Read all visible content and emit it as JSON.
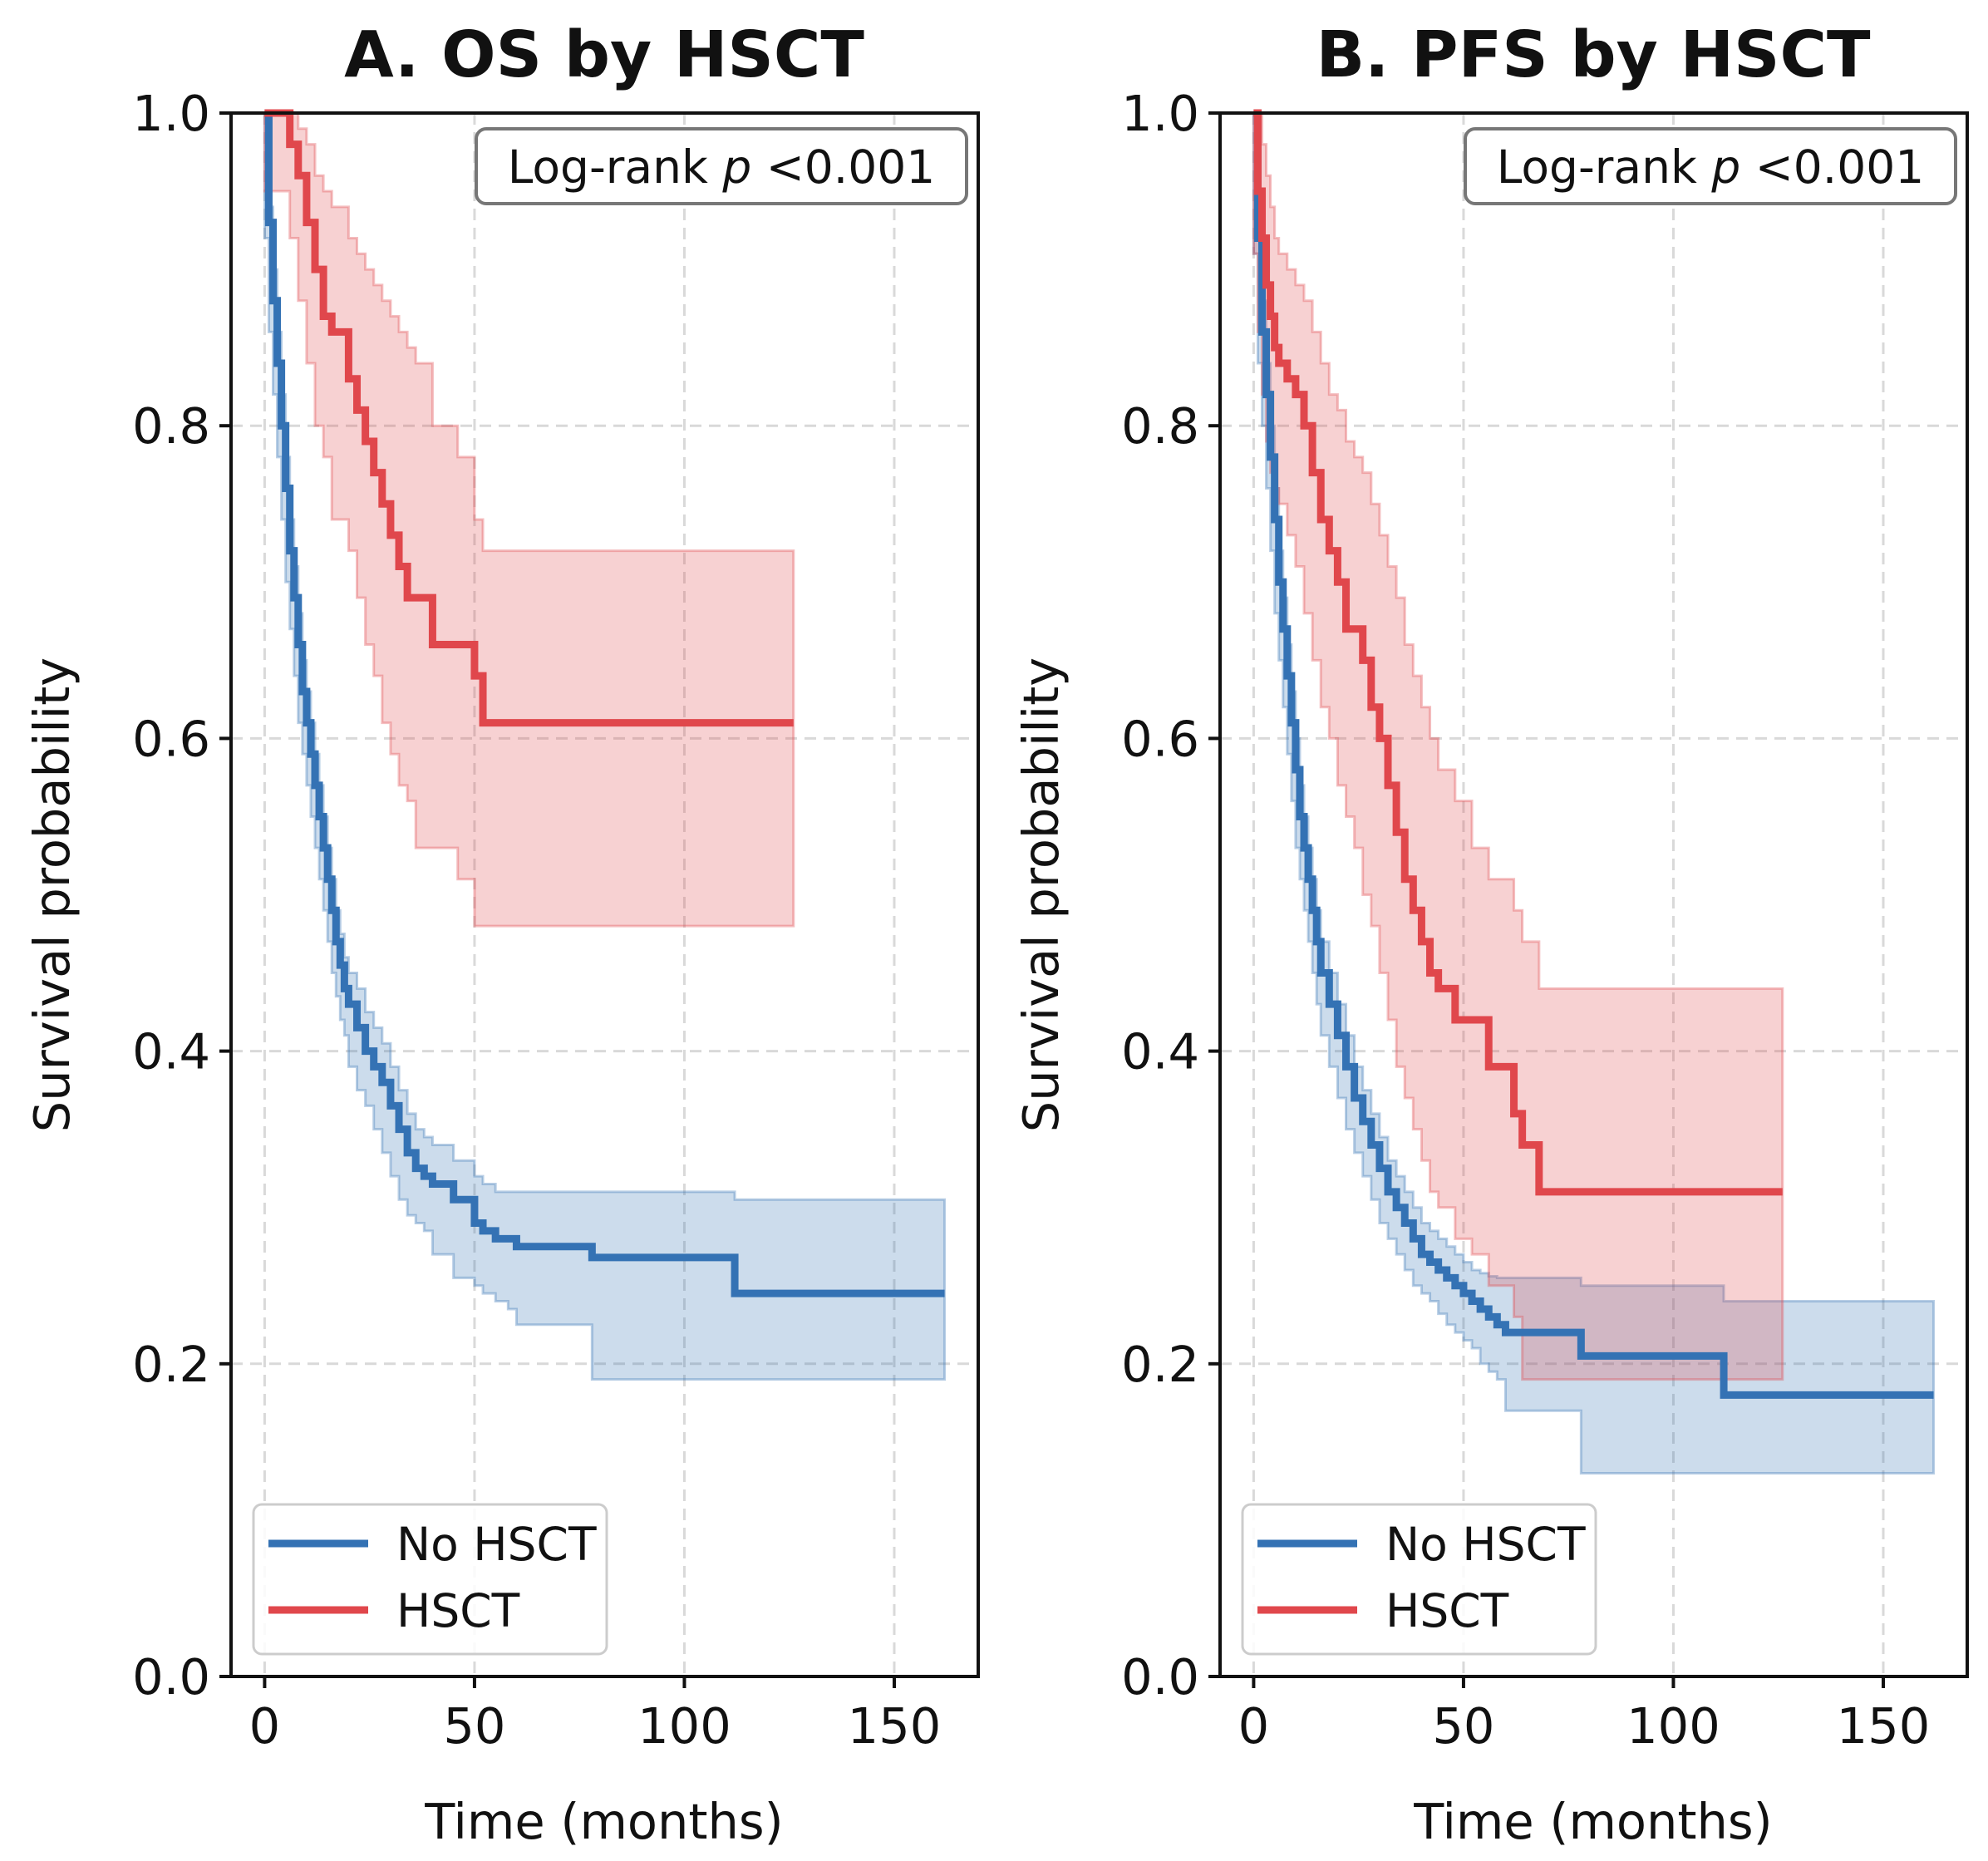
{
  "colors": {
    "no_hsct": "#3472b4",
    "hsct": "#e0474c",
    "no_hsct_band": "#c5d6e9",
    "hsct_band": "#f7c8ca"
  },
  "chart_data": [
    {
      "type": "line",
      "title": "A. OS by HSCT",
      "xlabel": "Time (months)",
      "ylabel": "Survival probability",
      "xlim": [
        -8,
        170
      ],
      "ylim": [
        0,
        1.0
      ],
      "xticks": [
        0,
        50,
        100,
        150
      ],
      "yticks": [
        0.0,
        0.2,
        0.4,
        0.6,
        0.8,
        1.0
      ],
      "annotation": {
        "prefix": "Log-rank ",
        "p": "p",
        "suffix": " <0.001"
      },
      "legend": {
        "position": "lower-left",
        "entries": [
          "No HSCT",
          "HSCT"
        ]
      },
      "series": [
        {
          "name": "No HSCT",
          "color_key": "no_hsct",
          "x": [
            0,
            1,
            2,
            3,
            4,
            5,
            6,
            7,
            8,
            9,
            10,
            11,
            12,
            13,
            14,
            15,
            16,
            17,
            18,
            19,
            20,
            22,
            24,
            26,
            28,
            30,
            32,
            34,
            36,
            38,
            40,
            45,
            50,
            52,
            55,
            58,
            60,
            78,
            112,
            162
          ],
          "y": [
            1.0,
            0.93,
            0.88,
            0.84,
            0.8,
            0.76,
            0.72,
            0.69,
            0.66,
            0.63,
            0.61,
            0.59,
            0.57,
            0.55,
            0.53,
            0.51,
            0.49,
            0.47,
            0.455,
            0.44,
            0.43,
            0.415,
            0.4,
            0.39,
            0.38,
            0.365,
            0.35,
            0.335,
            0.325,
            0.32,
            0.315,
            0.305,
            0.29,
            0.285,
            0.28,
            0.28,
            0.275,
            0.268,
            0.245,
            0.245
          ],
          "ci_upper": [
            1.0,
            0.94,
            0.9,
            0.86,
            0.82,
            0.78,
            0.74,
            0.71,
            0.68,
            0.65,
            0.63,
            0.61,
            0.59,
            0.57,
            0.55,
            0.53,
            0.51,
            0.49,
            0.475,
            0.46,
            0.45,
            0.44,
            0.425,
            0.415,
            0.405,
            0.39,
            0.375,
            0.36,
            0.35,
            0.345,
            0.34,
            0.33,
            0.32,
            0.315,
            0.31,
            0.31,
            0.31,
            0.31,
            0.305,
            0.305
          ],
          "ci_lower": [
            1.0,
            0.92,
            0.86,
            0.82,
            0.78,
            0.74,
            0.7,
            0.67,
            0.64,
            0.61,
            0.59,
            0.57,
            0.55,
            0.53,
            0.51,
            0.49,
            0.47,
            0.45,
            0.435,
            0.42,
            0.41,
            0.39,
            0.375,
            0.365,
            0.35,
            0.335,
            0.32,
            0.305,
            0.295,
            0.29,
            0.285,
            0.27,
            0.255,
            0.25,
            0.245,
            0.24,
            0.235,
            0.225,
            0.19,
            0.19
          ]
        },
        {
          "name": "HSCT",
          "color_key": "hsct",
          "x": [
            0,
            6,
            8,
            10,
            12,
            14,
            16,
            20,
            22,
            24,
            26,
            28,
            30,
            32,
            34,
            36,
            40,
            46,
            50,
            52,
            126
          ],
          "y": [
            1.0,
            0.98,
            0.96,
            0.93,
            0.9,
            0.87,
            0.86,
            0.83,
            0.81,
            0.79,
            0.77,
            0.75,
            0.73,
            0.71,
            0.69,
            0.69,
            0.66,
            0.66,
            0.64,
            0.61,
            0.61
          ],
          "ci_upper": [
            1.0,
            1.0,
            0.99,
            0.98,
            0.96,
            0.95,
            0.94,
            0.92,
            0.91,
            0.9,
            0.89,
            0.88,
            0.87,
            0.86,
            0.85,
            0.84,
            0.8,
            0.78,
            0.74,
            0.72,
            0.72
          ],
          "ci_lower": [
            1.0,
            0.95,
            0.92,
            0.88,
            0.84,
            0.8,
            0.78,
            0.74,
            0.72,
            0.69,
            0.66,
            0.64,
            0.61,
            0.59,
            0.57,
            0.56,
            0.53,
            0.53,
            0.51,
            0.48,
            0.48
          ]
        }
      ]
    },
    {
      "type": "line",
      "title": "B. PFS by HSCT",
      "xlabel": "Time (months)",
      "ylabel": "Survival probability",
      "xlim": [
        -8,
        170
      ],
      "ylim": [
        0,
        1.0
      ],
      "xticks": [
        0,
        50,
        100,
        150
      ],
      "yticks": [
        0.0,
        0.2,
        0.4,
        0.6,
        0.8,
        1.0
      ],
      "annotation": {
        "prefix": "Log-rank ",
        "p": "p",
        "suffix": " <0.001"
      },
      "legend": {
        "position": "lower-left",
        "entries": [
          "No HSCT",
          "HSCT"
        ]
      },
      "series": [
        {
          "name": "No HSCT",
          "color_key": "no_hsct",
          "x": [
            0,
            1,
            2,
            3,
            4,
            5,
            6,
            7,
            8,
            9,
            10,
            11,
            12,
            13,
            14,
            15,
            16,
            18,
            20,
            22,
            24,
            26,
            28,
            30,
            32,
            34,
            36,
            38,
            40,
            42,
            44,
            46,
            48,
            50,
            52,
            54,
            56,
            58,
            60,
            78,
            112,
            162
          ],
          "y": [
            1.0,
            0.92,
            0.86,
            0.82,
            0.78,
            0.74,
            0.7,
            0.67,
            0.64,
            0.61,
            0.58,
            0.55,
            0.53,
            0.51,
            0.49,
            0.47,
            0.45,
            0.43,
            0.41,
            0.39,
            0.37,
            0.355,
            0.34,
            0.325,
            0.31,
            0.3,
            0.29,
            0.28,
            0.27,
            0.265,
            0.26,
            0.255,
            0.25,
            0.245,
            0.24,
            0.235,
            0.23,
            0.225,
            0.22,
            0.205,
            0.18,
            0.18
          ],
          "ci_upper": [
            1.0,
            0.93,
            0.88,
            0.84,
            0.8,
            0.76,
            0.72,
            0.69,
            0.66,
            0.63,
            0.6,
            0.57,
            0.55,
            0.53,
            0.51,
            0.49,
            0.47,
            0.45,
            0.43,
            0.41,
            0.39,
            0.375,
            0.36,
            0.345,
            0.33,
            0.32,
            0.31,
            0.3,
            0.29,
            0.285,
            0.28,
            0.275,
            0.27,
            0.265,
            0.26,
            0.258,
            0.256,
            0.255,
            0.255,
            0.25,
            0.24,
            0.24
          ],
          "ci_lower": [
            1.0,
            0.91,
            0.84,
            0.8,
            0.76,
            0.72,
            0.68,
            0.65,
            0.62,
            0.59,
            0.56,
            0.53,
            0.51,
            0.49,
            0.47,
            0.45,
            0.43,
            0.41,
            0.39,
            0.37,
            0.35,
            0.335,
            0.32,
            0.305,
            0.29,
            0.28,
            0.27,
            0.26,
            0.25,
            0.245,
            0.24,
            0.232,
            0.225,
            0.22,
            0.215,
            0.21,
            0.2,
            0.195,
            0.19,
            0.17,
            0.13,
            0.13
          ]
        },
        {
          "name": "HSCT",
          "color_key": "hsct",
          "x": [
            0,
            1,
            2,
            3,
            4,
            5,
            6,
            8,
            10,
            12,
            14,
            16,
            18,
            20,
            22,
            24,
            26,
            28,
            30,
            32,
            34,
            36,
            38,
            40,
            42,
            44,
            48,
            52,
            56,
            62,
            64,
            68,
            126
          ],
          "y": [
            1.0,
            0.95,
            0.92,
            0.89,
            0.87,
            0.85,
            0.84,
            0.83,
            0.82,
            0.8,
            0.77,
            0.74,
            0.72,
            0.7,
            0.67,
            0.67,
            0.65,
            0.62,
            0.6,
            0.57,
            0.54,
            0.51,
            0.49,
            0.47,
            0.45,
            0.44,
            0.42,
            0.42,
            0.39,
            0.36,
            0.34,
            0.31,
            0.31
          ],
          "ci_upper": [
            1.0,
            1.0,
            0.98,
            0.96,
            0.94,
            0.92,
            0.91,
            0.9,
            0.89,
            0.88,
            0.86,
            0.84,
            0.82,
            0.81,
            0.79,
            0.78,
            0.77,
            0.75,
            0.73,
            0.71,
            0.69,
            0.66,
            0.64,
            0.62,
            0.6,
            0.58,
            0.56,
            0.53,
            0.51,
            0.49,
            0.47,
            0.44,
            0.44
          ],
          "ci_lower": [
            1.0,
            0.91,
            0.86,
            0.82,
            0.79,
            0.77,
            0.76,
            0.75,
            0.73,
            0.71,
            0.68,
            0.65,
            0.62,
            0.6,
            0.57,
            0.55,
            0.53,
            0.5,
            0.48,
            0.45,
            0.42,
            0.39,
            0.37,
            0.35,
            0.33,
            0.31,
            0.3,
            0.28,
            0.27,
            0.25,
            0.23,
            0.19,
            0.19
          ]
        }
      ]
    }
  ]
}
